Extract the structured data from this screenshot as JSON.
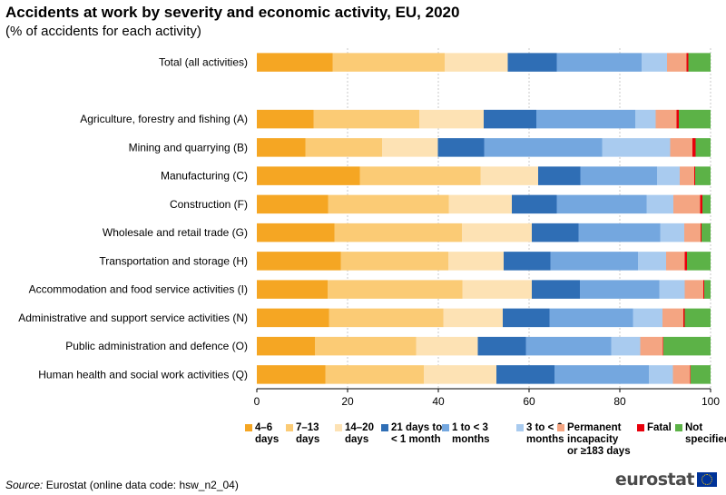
{
  "header": {
    "title": "Accidents at work by severity and economic activity, EU, 2020",
    "subtitle": "(% of accidents for each activity)"
  },
  "footer": {
    "source_label": "Source:",
    "source_text": "Eurostat (online data code: hsw_n2_04)",
    "logo_text": "eurostat"
  },
  "chart_data": {
    "type": "bar",
    "orientation": "horizontal",
    "stacked": true,
    "categories": [
      "Total (all activities)",
      "",
      "Agriculture, forestry and fishing (A)",
      "Mining and quarrying (B)",
      "Manufacturing (C)",
      "Construction (F)",
      "Wholesale and retail trade (G)",
      "Transportation and storage (H)",
      "Accommodation and food service activities (I)",
      "Administrative and support service activities (N)",
      "Public administration and defence (O)",
      "Human health and social work activities (Q)"
    ],
    "series": [
      {
        "name": "4–6 days",
        "color": "#f5a623",
        "values": [
          16.7,
          null,
          12.5,
          10.7,
          22.7,
          15.7,
          17.1,
          18.5,
          15.6,
          15.9,
          12.8,
          15.1
        ]
      },
      {
        "name": "7–13 days",
        "color": "#fbcb75",
        "values": [
          24.7,
          null,
          23.3,
          16.9,
          26.6,
          26.6,
          28.1,
          23.7,
          29.7,
          25.2,
          22.3,
          21.7
        ]
      },
      {
        "name": "14–20 days",
        "color": "#fde2b4",
        "values": [
          13.9,
          null,
          14.2,
          12.3,
          12.7,
          13.9,
          15.4,
          12.2,
          15.3,
          13.1,
          13.6,
          16.0
        ]
      },
      {
        "name": "21 days to < 1 month",
        "color": "#2f6eb5",
        "values": [
          10.8,
          null,
          11.6,
          10.2,
          9.3,
          9.9,
          10.3,
          10.3,
          10.6,
          10.3,
          10.6,
          12.8
        ]
      },
      {
        "name": "1 to < 3 months",
        "color": "#74a7df",
        "values": [
          18.7,
          null,
          21.8,
          26.0,
          16.9,
          19.8,
          18.0,
          19.3,
          17.5,
          18.4,
          18.8,
          20.8
        ]
      },
      {
        "name": "3 to < 6 months",
        "color": "#a9cbef",
        "values": [
          5.6,
          null,
          4.5,
          15.0,
          5.0,
          5.9,
          5.3,
          6.2,
          5.6,
          6.5,
          6.4,
          5.3
        ]
      },
      {
        "name": "Permanent incapacity or ≥183 days",
        "color": "#f4a582",
        "values": [
          4.3,
          null,
          4.6,
          4.9,
          3.2,
          5.9,
          3.6,
          4.1,
          4.1,
          4.6,
          5.0,
          3.8
        ]
      },
      {
        "name": "Fatal",
        "color": "#e8000b",
        "values": [
          0.4,
          null,
          0.5,
          0.7,
          0.2,
          0.5,
          0.2,
          0.5,
          0.2,
          0.3,
          0.1,
          0.1
        ]
      },
      {
        "name": "Not specified",
        "color": "#5cb247",
        "values": [
          4.9,
          null,
          7.0,
          3.3,
          3.4,
          1.8,
          2.0,
          5.2,
          1.4,
          5.7,
          10.4,
          4.4
        ]
      }
    ],
    "x_ticks": [
      0,
      20,
      40,
      60,
      80,
      100
    ],
    "xlim": [
      0,
      100
    ],
    "xlabel": "",
    "ylabel": "",
    "grid": "vertical dashed",
    "legend_position": "bottom"
  },
  "legend_labels": [
    "4–6\ndays",
    "7–13\ndays",
    "14–20\ndays",
    "21 days to\n< 1 month",
    "1 to < 3\nmonths",
    "3 to < 6\nmonths",
    "Permanent\nincapacity\nor ≥183 days",
    "Fatal",
    "Not\nspecified"
  ]
}
